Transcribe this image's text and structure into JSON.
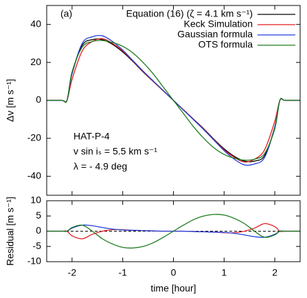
{
  "chart_data": [
    {
      "type": "line",
      "ylabel": "Δv [m s⁻¹]",
      "panel_label": "(a)",
      "annotations": [
        "HAT-P-4",
        "v sin iₛ = 5.5 km s⁻¹",
        "λ = - 4.9 deg"
      ],
      "x": [
        -2.5,
        -2.2,
        -2.1,
        -2.0,
        -1.8,
        -1.6,
        -1.4,
        -1.2,
        -1.0,
        -0.8,
        -0.6,
        -0.4,
        -0.2,
        0,
        0.2,
        0.4,
        0.6,
        0.8,
        1.0,
        1.2,
        1.4,
        1.6,
        1.8,
        2.0,
        2.1,
        2.2,
        2.5
      ],
      "series": [
        {
          "name": "Equation (16) (ζ = 4.1 km s⁻¹)",
          "color": "#000000",
          "values": [
            0,
            0,
            0,
            14,
            29,
            32,
            32,
            29.5,
            25.5,
            20.5,
            15,
            10,
            5,
            0,
            -5,
            -10,
            -15,
            -20.5,
            -25.5,
            -29.5,
            -32,
            -32,
            -29,
            -14,
            0,
            0,
            0
          ]
        },
        {
          "name": "Keck Simulation",
          "color": "#e41a1c",
          "values": [
            0,
            0,
            0,
            11,
            26,
            31,
            32.5,
            30,
            26,
            20.8,
            15.2,
            10.1,
            5,
            0,
            -5,
            -10.1,
            -15.2,
            -20.8,
            -26,
            -30,
            -32.5,
            -31,
            -26,
            -11,
            0,
            0,
            0
          ]
        },
        {
          "name": "Gaussian formula",
          "color": "#1f3fdc",
          "values": [
            0,
            0,
            0,
            14,
            30,
            33.5,
            34,
            31,
            26.5,
            21,
            15.5,
            10.3,
            5.2,
            0,
            -5.2,
            -10.3,
            -15.5,
            -21,
            -26.5,
            -31,
            -34,
            -33.5,
            -30,
            -14,
            0,
            0,
            0
          ]
        },
        {
          "name": "OTS formula",
          "color": "#1a7a1a",
          "values": [
            0,
            0,
            0,
            15,
            28,
            31,
            31.5,
            30.5,
            28.5,
            25,
            20,
            14,
            7,
            0,
            -7,
            -14,
            -20,
            -25,
            -28.5,
            -30.5,
            -31.5,
            -31,
            -28,
            -15,
            0,
            0,
            0
          ]
        }
      ],
      "xlim": [
        -2.5,
        2.5
      ],
      "xticks": [
        -2,
        -1,
        0,
        1,
        2
      ],
      "ylim": [
        -50,
        50
      ],
      "yticks": [
        -40,
        -20,
        0,
        20,
        40
      ],
      "legend": "top-right"
    },
    {
      "type": "line",
      "ylabel": "Residual [m s⁻¹]",
      "xlabel": "time [hour]",
      "hline": 0,
      "x": [
        -2.5,
        -2.2,
        -2.1,
        -2.0,
        -1.8,
        -1.6,
        -1.4,
        -1.2,
        -1.0,
        -0.8,
        -0.6,
        -0.4,
        -0.2,
        0,
        0.2,
        0.4,
        0.6,
        0.8,
        1.0,
        1.2,
        1.4,
        1.6,
        1.8,
        2.0,
        2.1,
        2.2,
        2.5
      ],
      "series": [
        {
          "color": "#e41a1c",
          "values": [
            0,
            0,
            0,
            -1.5,
            -2.5,
            -1,
            0,
            0.5,
            0.5,
            0.3,
            0.2,
            0.1,
            0,
            0,
            0,
            -0.1,
            -0.2,
            -0.3,
            -0.5,
            -0.5,
            0,
            1,
            2.5,
            1.5,
            0,
            0,
            0
          ]
        },
        {
          "color": "#1f3fdc",
          "values": [
            0,
            0,
            0,
            1,
            2,
            1.8,
            1.2,
            0.7,
            0.4,
            0.3,
            0.2,
            0.1,
            0,
            0,
            0,
            -0.1,
            -0.2,
            -0.3,
            -0.4,
            -0.7,
            -1.2,
            -1.8,
            -2,
            -1,
            0,
            0,
            0
          ]
        },
        {
          "color": "#1a7a1a",
          "values": [
            0,
            0,
            0,
            1.2,
            2,
            0,
            -2.5,
            -4.2,
            -5.3,
            -5.5,
            -5,
            -3.8,
            -2,
            0,
            2,
            3.8,
            5,
            5.5,
            5.3,
            4.2,
            2.5,
            0,
            -2,
            -1.2,
            0,
            0,
            0
          ]
        }
      ],
      "xlim": [
        -2.5,
        2.5
      ],
      "xticks": [
        -2,
        -1,
        0,
        1,
        2
      ],
      "ylim": [
        -10,
        10
      ],
      "yticks": [
        -10,
        -5,
        0,
        5,
        10
      ]
    }
  ]
}
